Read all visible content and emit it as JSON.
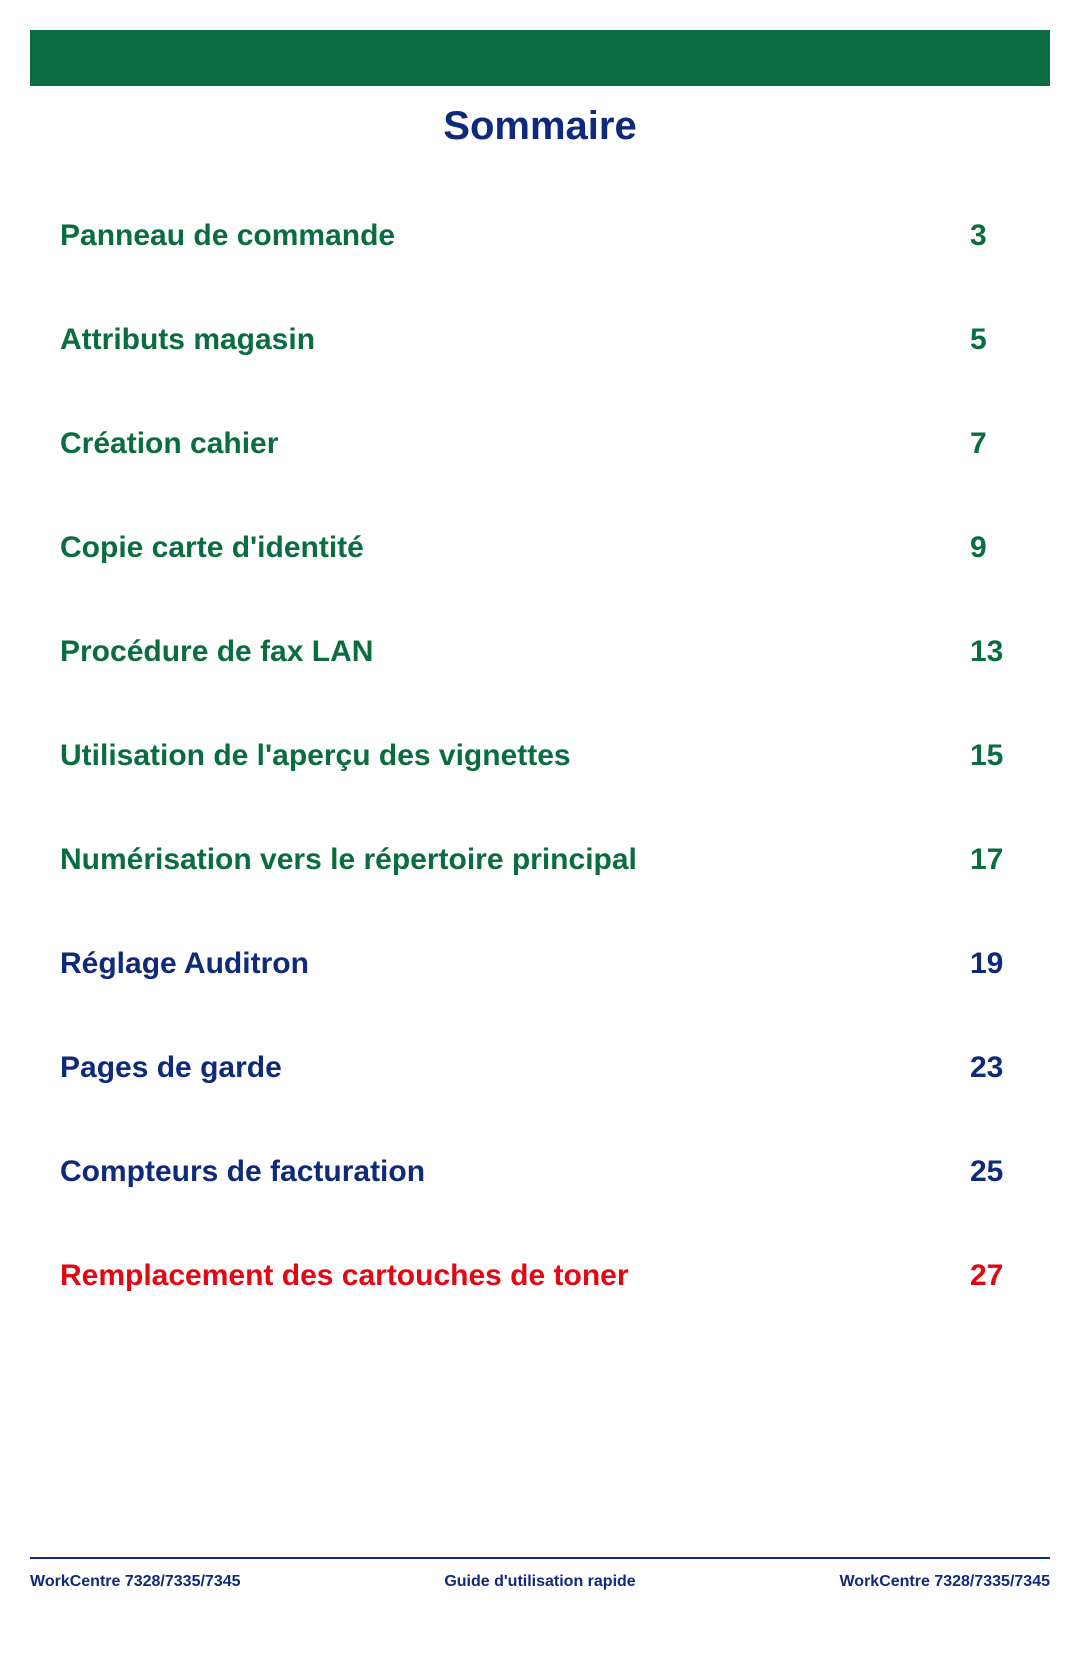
{
  "colors": {
    "header_bar": "#0a6d3f",
    "title": "#0f2a7a",
    "green": "#0a6d3f",
    "blue": "#0f2a7a",
    "red": "#e30613",
    "rule": "#0f2a7a",
    "footer_text": "#0f2a7a"
  },
  "typography": {
    "title_fontsize": 40,
    "toc_fontsize": 30,
    "footer_fontsize": 16
  },
  "title": "Sommaire",
  "toc": [
    {
      "label": "Panneau de commande",
      "page": "3",
      "color_key": "green"
    },
    {
      "label": "Attributs magasin",
      "page": "5",
      "color_key": "green"
    },
    {
      "label": "Création cahier",
      "page": "7",
      "color_key": "green"
    },
    {
      "label": "Copie carte d'identité",
      "page": "9",
      "color_key": "green"
    },
    {
      "label": "Procédure de fax LAN",
      "page": "13",
      "color_key": "green"
    },
    {
      "label": "Utilisation de l'aperçu des vignettes",
      "page": "15",
      "color_key": "green"
    },
    {
      "label": "Numérisation vers le répertoire principal",
      "page": "17",
      "color_key": "green"
    },
    {
      "label": "Réglage Auditron",
      "page": "19",
      "color_key": "blue"
    },
    {
      "label": "Pages de garde",
      "page": "23",
      "color_key": "blue"
    },
    {
      "label": "Compteurs de facturation",
      "page": "25",
      "color_key": "blue"
    },
    {
      "label": "Remplacement des cartouches de toner",
      "page": "27",
      "color_key": "red"
    }
  ],
  "footer": {
    "left": "WorkCentre 7328/7335/7345",
    "center": "Guide d'utilisation rapide",
    "right": "WorkCentre 7328/7335/7345"
  }
}
